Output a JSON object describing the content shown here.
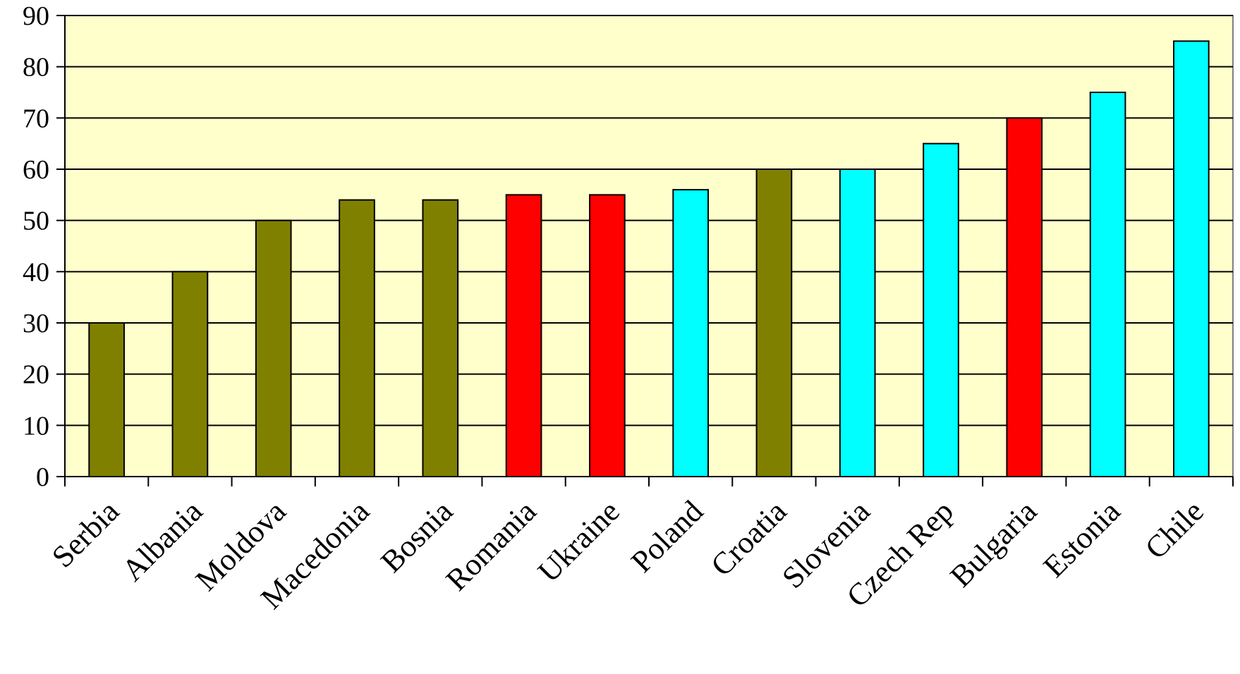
{
  "chart_data": {
    "type": "bar",
    "title": "",
    "xlabel": "",
    "ylabel": "",
    "ylim": [
      0,
      90
    ],
    "yticks": [
      0,
      10,
      20,
      30,
      40,
      50,
      60,
      70,
      80,
      90
    ],
    "grid": "horizontal major gridlines",
    "legend": "none",
    "plot_background": "#FFFFCC",
    "categories": [
      "Serbia",
      "Albania",
      "Moldova",
      "Macedonia",
      "Bosnia",
      "Romania",
      "Ukraine",
      "Poland",
      "Croatia",
      "Slovenia",
      "Czech Rep",
      "Bulgaria",
      "Estonia",
      "Chile"
    ],
    "values": [
      30,
      40,
      50,
      54,
      54,
      55,
      55,
      56,
      60,
      60,
      65,
      70,
      75,
      85
    ],
    "bar_colors": [
      "#808000",
      "#808000",
      "#808000",
      "#808000",
      "#808000",
      "#FF0000",
      "#FF0000",
      "#00FFFF",
      "#808000",
      "#00FFFF",
      "#00FFFF",
      "#FF0000",
      "#00FFFF",
      "#00FFFF"
    ]
  }
}
